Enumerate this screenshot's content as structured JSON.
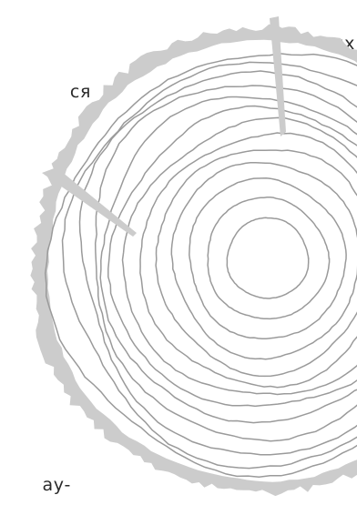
{
  "text_fragments": [
    "овых",
    "ся",
    "ау-"
  ],
  "illustration": {
    "icon": "tree-rings-icon",
    "bark_color": "#cccccc",
    "ring_color": "#9a9a9a"
  }
}
